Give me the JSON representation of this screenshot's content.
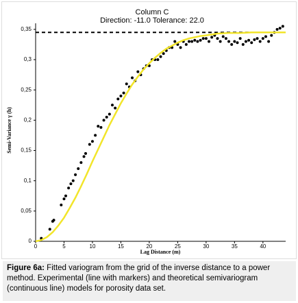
{
  "chart_data": {
    "type": "scatter",
    "title": "Column C",
    "subtitle": "Direction: -11.0   Tolerance: 22.0",
    "xlabel": "Lag Distance (m)",
    "ylabel": "Semi-Variance γ (h)",
    "xlim": [
      0,
      44
    ],
    "ylim": [
      0,
      0.36
    ],
    "xticks": [
      0,
      5,
      10,
      15,
      20,
      25,
      30,
      35,
      40
    ],
    "yticks": [
      0,
      {
        "value": 0.05,
        "label": "0,05"
      },
      {
        "value": 0.1,
        "label": "0,1"
      },
      {
        "value": 0.15,
        "label": "0,15"
      },
      {
        "value": 0.2,
        "label": "0,2"
      },
      {
        "value": 0.25,
        "label": "0,25"
      },
      {
        "value": 0.3,
        "label": "0,3"
      },
      {
        "value": 0.35,
        "label": "0,35"
      }
    ],
    "sill": 0.345,
    "series": [
      {
        "type": "scatter",
        "color": "#000000",
        "x": [
          1,
          2.5,
          3,
          3.2,
          4.5,
          5,
          5.3,
          5.8,
          6.2,
          6.6,
          7,
          7.5,
          8,
          8.5,
          8.8,
          9.5,
          10,
          10.5,
          11,
          11.5,
          12,
          12.5,
          13,
          13.5,
          14,
          14.5,
          15,
          15.5,
          16,
          16.5,
          17,
          17.5,
          18,
          18.5,
          19,
          19.5,
          20,
          20.5,
          21,
          21.5,
          22,
          22.5,
          23,
          23.5,
          24,
          24.5,
          25,
          25.5,
          26,
          26.5,
          27,
          27.5,
          28,
          28.5,
          29,
          29.5,
          30,
          30.5,
          31,
          31.5,
          32,
          32.5,
          33,
          33.5,
          34,
          34.5,
          35,
          35.5,
          36,
          36.5,
          37,
          37.5,
          38,
          38.5,
          39,
          39.5,
          40,
          40.5,
          41,
          41.5,
          42,
          42.5,
          43,
          43.5
        ],
        "values": [
          0.005,
          0.02,
          0.033,
          0.035,
          0.06,
          0.07,
          0.075,
          0.088,
          0.095,
          0.1,
          0.11,
          0.12,
          0.13,
          0.14,
          0.145,
          0.16,
          0.165,
          0.175,
          0.19,
          0.188,
          0.2,
          0.205,
          0.21,
          0.225,
          0.22,
          0.235,
          0.24,
          0.245,
          0.26,
          0.255,
          0.27,
          0.265,
          0.28,
          0.275,
          0.285,
          0.29,
          0.29,
          0.3,
          0.3,
          0.3,
          0.305,
          0.31,
          0.315,
          0.32,
          0.32,
          0.33,
          0.325,
          0.32,
          0.33,
          0.325,
          0.33,
          0.33,
          0.332,
          0.33,
          0.332,
          0.335,
          0.335,
          0.33,
          0.337,
          0.34,
          0.335,
          0.33,
          0.338,
          0.335,
          0.33,
          0.325,
          0.33,
          0.328,
          0.335,
          0.325,
          0.33,
          0.332,
          0.328,
          0.333,
          0.335,
          0.33,
          0.335,
          0.338,
          0.33,
          0.34,
          0.345,
          0.35,
          0.352,
          0.355
        ]
      },
      {
        "type": "line",
        "color": "#f2e52a",
        "x": [
          0,
          1,
          2,
          3,
          4,
          5,
          6,
          7,
          8,
          9,
          10,
          11,
          12,
          13,
          14,
          15,
          16,
          17,
          18,
          19,
          20,
          21,
          22,
          23,
          24,
          25,
          26,
          27,
          28,
          29,
          30,
          32,
          34,
          36,
          38,
          40,
          42,
          44
        ],
        "values": [
          0,
          0.002,
          0.007,
          0.015,
          0.026,
          0.039,
          0.055,
          0.072,
          0.091,
          0.111,
          0.132,
          0.152,
          0.172,
          0.192,
          0.21,
          0.228,
          0.244,
          0.259,
          0.272,
          0.284,
          0.294,
          0.303,
          0.311,
          0.318,
          0.323,
          0.328,
          0.332,
          0.335,
          0.337,
          0.339,
          0.34,
          0.343,
          0.344,
          0.344,
          0.345,
          0.345,
          0.345,
          0.345
        ]
      }
    ],
    "caption_label": "Figure 6a:",
    "caption": "Fitted variogram from the grid of the inverse distance to a power method. Experimental (line with markers) and theoretical semivariogram (continuous line) models for porosity data set."
  }
}
